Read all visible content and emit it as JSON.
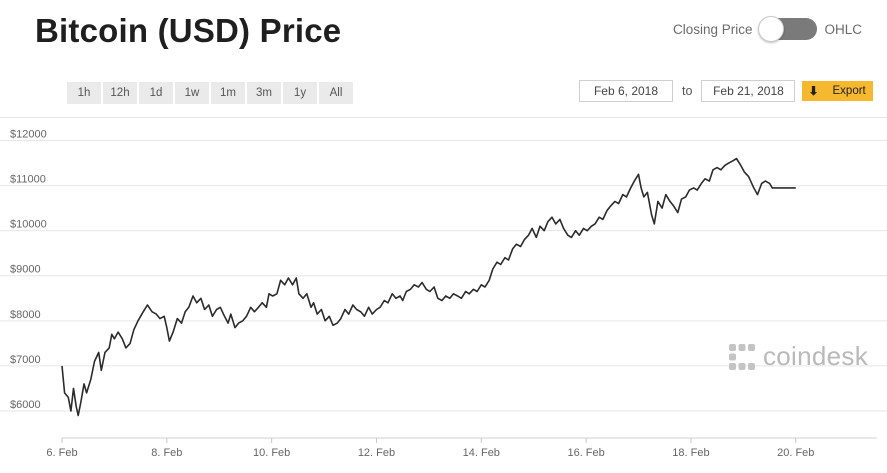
{
  "header": {
    "title": "Bitcoin (USD) Price",
    "toggle_left": "Closing Price",
    "toggle_right": "OHLC"
  },
  "ranges": [
    "1h",
    "12h",
    "1d",
    "1w",
    "1m",
    "3m",
    "1y",
    "All"
  ],
  "dates": {
    "from": "Feb 6, 2018",
    "to_label": "to",
    "to": "Feb 21, 2018"
  },
  "export_label": "Export",
  "brand": {
    "name": "coindesk",
    "icon": "coindesk-logo-icon"
  },
  "colors": {
    "line": "#2b2b2b",
    "grid": "#e6e6e6",
    "export_bg": "#f5b82e",
    "toggle_bg": "#7a7a7a"
  },
  "chart_data": {
    "type": "line",
    "title": "",
    "xlabel": "",
    "ylabel": "",
    "x_ticks": [
      "6. Feb",
      "8. Feb",
      "10. Feb",
      "12. Feb",
      "14. Feb",
      "16. Feb",
      "18. Feb",
      "20. Feb"
    ],
    "y_ticks": [
      "$6000",
      "$7000",
      "$8000",
      "$9000",
      "$10000",
      "$11000",
      "$12000"
    ],
    "xlim": [
      6.0,
      21.55
    ],
    "ylim": [
      5400,
      12500
    ],
    "grid": true,
    "legend": "none",
    "series": [
      {
        "name": "",
        "points": [
          [
            6.0,
            7000
          ],
          [
            6.05,
            6400
          ],
          [
            6.12,
            6300
          ],
          [
            6.17,
            6000
          ],
          [
            6.22,
            6500
          ],
          [
            6.27,
            6100
          ],
          [
            6.31,
            5900
          ],
          [
            6.36,
            6200
          ],
          [
            6.42,
            6600
          ],
          [
            6.47,
            6400
          ],
          [
            6.55,
            6700
          ],
          [
            6.62,
            7100
          ],
          [
            6.7,
            7300
          ],
          [
            6.75,
            6900
          ],
          [
            6.82,
            7300
          ],
          [
            6.9,
            7400
          ],
          [
            6.95,
            7700
          ],
          [
            7.0,
            7600
          ],
          [
            7.07,
            7750
          ],
          [
            7.15,
            7600
          ],
          [
            7.22,
            7400
          ],
          [
            7.3,
            7500
          ],
          [
            7.37,
            7800
          ],
          [
            7.45,
            8000
          ],
          [
            7.55,
            8200
          ],
          [
            7.63,
            8350
          ],
          [
            7.72,
            8200
          ],
          [
            7.8,
            8150
          ],
          [
            7.87,
            8050
          ],
          [
            7.95,
            8100
          ],
          [
            8.0,
            7850
          ],
          [
            8.05,
            7550
          ],
          [
            8.12,
            7750
          ],
          [
            8.2,
            8050
          ],
          [
            8.28,
            7950
          ],
          [
            8.35,
            8200
          ],
          [
            8.42,
            8300
          ],
          [
            8.5,
            8550
          ],
          [
            8.57,
            8400
          ],
          [
            8.65,
            8500
          ],
          [
            8.72,
            8250
          ],
          [
            8.8,
            8350
          ],
          [
            8.87,
            8100
          ],
          [
            8.95,
            8250
          ],
          [
            9.02,
            8300
          ],
          [
            9.1,
            8100
          ],
          [
            9.17,
            7950
          ],
          [
            9.22,
            8150
          ],
          [
            9.3,
            7850
          ],
          [
            9.37,
            7950
          ],
          [
            9.45,
            8000
          ],
          [
            9.52,
            8100
          ],
          [
            9.6,
            8300
          ],
          [
            9.67,
            8200
          ],
          [
            9.75,
            8300
          ],
          [
            9.82,
            8400
          ],
          [
            9.9,
            8300
          ],
          [
            9.95,
            8600
          ],
          [
            10.02,
            8550
          ],
          [
            10.1,
            8600
          ],
          [
            10.17,
            8900
          ],
          [
            10.25,
            8800
          ],
          [
            10.32,
            8950
          ],
          [
            10.4,
            8800
          ],
          [
            10.47,
            8950
          ],
          [
            10.52,
            8600
          ],
          [
            10.6,
            8500
          ],
          [
            10.67,
            8600
          ],
          [
            10.75,
            8300
          ],
          [
            10.8,
            8400
          ],
          [
            10.87,
            8150
          ],
          [
            10.95,
            8250
          ],
          [
            11.02,
            8000
          ],
          [
            11.1,
            8100
          ],
          [
            11.17,
            7900
          ],
          [
            11.25,
            7950
          ],
          [
            11.32,
            8050
          ],
          [
            11.4,
            8250
          ],
          [
            11.47,
            8150
          ],
          [
            11.55,
            8350
          ],
          [
            11.62,
            8250
          ],
          [
            11.7,
            8200
          ],
          [
            11.77,
            8100
          ],
          [
            11.85,
            8300
          ],
          [
            11.92,
            8150
          ],
          [
            12.0,
            8250
          ],
          [
            12.07,
            8300
          ],
          [
            12.15,
            8450
          ],
          [
            12.22,
            8400
          ],
          [
            12.3,
            8600
          ],
          [
            12.37,
            8500
          ],
          [
            12.45,
            8550
          ],
          [
            12.5,
            8450
          ],
          [
            12.57,
            8650
          ],
          [
            12.65,
            8700
          ],
          [
            12.72,
            8800
          ],
          [
            12.8,
            8750
          ],
          [
            12.87,
            8850
          ],
          [
            12.95,
            8700
          ],
          [
            13.02,
            8650
          ],
          [
            13.1,
            8750
          ],
          [
            13.17,
            8500
          ],
          [
            13.25,
            8450
          ],
          [
            13.32,
            8550
          ],
          [
            13.4,
            8500
          ],
          [
            13.47,
            8600
          ],
          [
            13.55,
            8550
          ],
          [
            13.62,
            8500
          ],
          [
            13.7,
            8650
          ],
          [
            13.77,
            8600
          ],
          [
            13.85,
            8700
          ],
          [
            13.92,
            8650
          ],
          [
            14.0,
            8800
          ],
          [
            14.07,
            8750
          ],
          [
            14.15,
            8900
          ],
          [
            14.22,
            9150
          ],
          [
            14.3,
            9300
          ],
          [
            14.37,
            9250
          ],
          [
            14.45,
            9400
          ],
          [
            14.52,
            9350
          ],
          [
            14.6,
            9600
          ],
          [
            14.67,
            9700
          ],
          [
            14.75,
            9650
          ],
          [
            14.82,
            9800
          ],
          [
            14.9,
            9900
          ],
          [
            14.97,
            10050
          ],
          [
            15.05,
            9850
          ],
          [
            15.12,
            10100
          ],
          [
            15.2,
            10000
          ],
          [
            15.27,
            10200
          ],
          [
            15.35,
            10300
          ],
          [
            15.42,
            10150
          ],
          [
            15.5,
            10250
          ],
          [
            15.57,
            10050
          ],
          [
            15.65,
            9900
          ],
          [
            15.72,
            9850
          ],
          [
            15.8,
            10000
          ],
          [
            15.87,
            9900
          ],
          [
            15.95,
            10050
          ],
          [
            16.02,
            10000
          ],
          [
            16.1,
            10100
          ],
          [
            16.17,
            10150
          ],
          [
            16.25,
            10300
          ],
          [
            16.32,
            10250
          ],
          [
            16.4,
            10450
          ],
          [
            16.47,
            10550
          ],
          [
            16.55,
            10650
          ],
          [
            16.62,
            10600
          ],
          [
            16.7,
            10800
          ],
          [
            16.77,
            10750
          ],
          [
            16.85,
            10950
          ],
          [
            16.92,
            11100
          ],
          [
            17.0,
            11250
          ],
          [
            17.05,
            10950
          ],
          [
            17.1,
            10750
          ],
          [
            17.17,
            10850
          ],
          [
            17.25,
            10350
          ],
          [
            17.3,
            10150
          ],
          [
            17.37,
            10650
          ],
          [
            17.45,
            10500
          ],
          [
            17.52,
            10800
          ],
          [
            17.6,
            10650
          ],
          [
            17.67,
            10550
          ],
          [
            17.75,
            10400
          ],
          [
            17.82,
            10700
          ],
          [
            17.9,
            10750
          ],
          [
            17.97,
            10900
          ],
          [
            18.05,
            10950
          ],
          [
            18.12,
            10900
          ],
          [
            18.2,
            11050
          ],
          [
            18.27,
            11150
          ],
          [
            18.35,
            11100
          ],
          [
            18.42,
            11350
          ],
          [
            18.5,
            11400
          ],
          [
            18.57,
            11350
          ],
          [
            18.65,
            11450
          ],
          [
            18.72,
            11500
          ],
          [
            18.8,
            11550
          ],
          [
            18.87,
            11600
          ],
          [
            18.95,
            11450
          ],
          [
            19.02,
            11300
          ],
          [
            19.1,
            11200
          ],
          [
            19.2,
            10950
          ],
          [
            19.27,
            10800
          ],
          [
            19.35,
            11050
          ],
          [
            19.42,
            11100
          ],
          [
            19.5,
            11050
          ],
          [
            19.55,
            10950
          ],
          [
            20.0,
            10950
          ]
        ]
      }
    ]
  }
}
